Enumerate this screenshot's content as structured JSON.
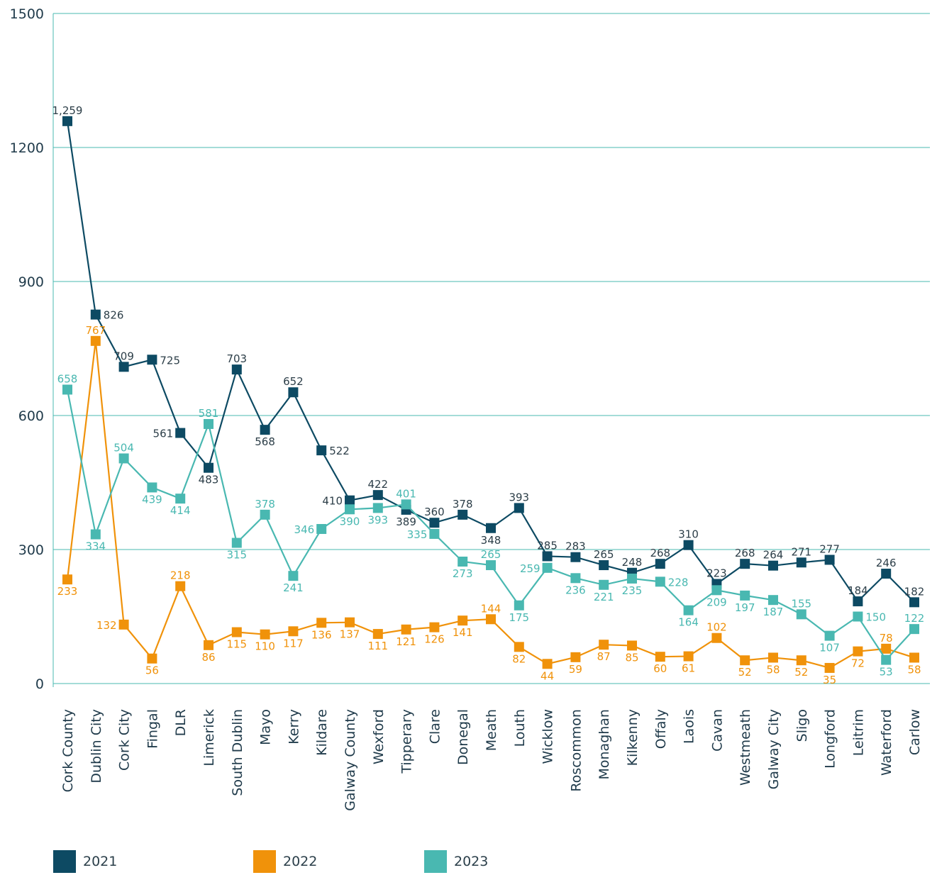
{
  "chart_data": {
    "type": "line",
    "categories": [
      "Cork County",
      "Dublin City",
      "Cork City",
      "Fingal",
      "DLR",
      "Limerick",
      "South Dublin",
      "Mayo",
      "Kerry",
      "Kildare",
      "Galway County",
      "Wexford",
      "Tipperary",
      "Clare",
      "Donegal",
      "Meath",
      "Louth",
      "Wicklow",
      "Roscommon",
      "Monaghan",
      "Kilkenny",
      "Offaly",
      "Laois",
      "Cavan",
      "Westmeath",
      "Galway City",
      "Sligo",
      "Longford",
      "Leitrim",
      "Waterford",
      "Carlow"
    ],
    "yticks": [
      "0",
      "300",
      "600",
      "900",
      "1200",
      "1500"
    ],
    "ylim": [
      0,
      1500
    ],
    "grid": true,
    "legend_position": "bottom",
    "series": [
      {
        "name": "2021",
        "color": "#0d4a63",
        "values": [
          1259,
          826,
          709,
          725,
          561,
          483,
          703,
          568,
          652,
          522,
          410,
          422,
          389,
          360,
          378,
          348,
          393,
          285,
          283,
          265,
          248,
          268,
          310,
          223,
          268,
          264,
          271,
          277,
          184,
          246,
          182
        ],
        "labels": [
          "1,259",
          "826",
          "709",
          "725",
          "561",
          "483",
          "703",
          "568",
          "652",
          "522",
          "410",
          "422",
          "389",
          "360",
          "378",
          "348",
          "393",
          "285",
          "283",
          "265",
          "248",
          "268",
          "310",
          "223",
          "268",
          "264",
          "271",
          "277",
          "184",
          "246",
          "182"
        ]
      },
      {
        "name": "2022",
        "color": "#f0920a",
        "values": [
          233,
          767,
          132,
          56,
          218,
          86,
          115,
          110,
          117,
          136,
          137,
          111,
          121,
          126,
          141,
          144,
          82,
          44,
          59,
          87,
          85,
          60,
          61,
          102,
          52,
          58,
          52,
          35,
          72,
          78,
          58
        ],
        "labels": [
          "233",
          "767",
          "132",
          "56",
          "218",
          "86",
          "115",
          "110",
          "117",
          "136",
          "137",
          "111",
          "121",
          "126",
          "141",
          "144",
          "82",
          "44",
          "59",
          "87",
          "85",
          "60",
          "61",
          "102",
          "52",
          "58",
          "52",
          "35",
          "72",
          "78",
          "58"
        ]
      },
      {
        "name": "2023",
        "color": "#49b8b1",
        "values": [
          658,
          334,
          504,
          439,
          414,
          581,
          315,
          378,
          241,
          346,
          390,
          393,
          401,
          335,
          273,
          265,
          175,
          259,
          236,
          221,
          235,
          228,
          164,
          209,
          197,
          187,
          155,
          107,
          150,
          53,
          122
        ],
        "labels": [
          "658",
          "334",
          "504",
          "439",
          "414",
          "581",
          "315",
          "378",
          "241",
          "346",
          "390",
          "393",
          "401",
          "335",
          "273",
          "265",
          "175",
          "259",
          "236",
          "221",
          "235",
          "228",
          "164",
          "209",
          "197",
          "187",
          "155",
          "107",
          "150",
          "53",
          "122"
        ]
      }
    ]
  }
}
